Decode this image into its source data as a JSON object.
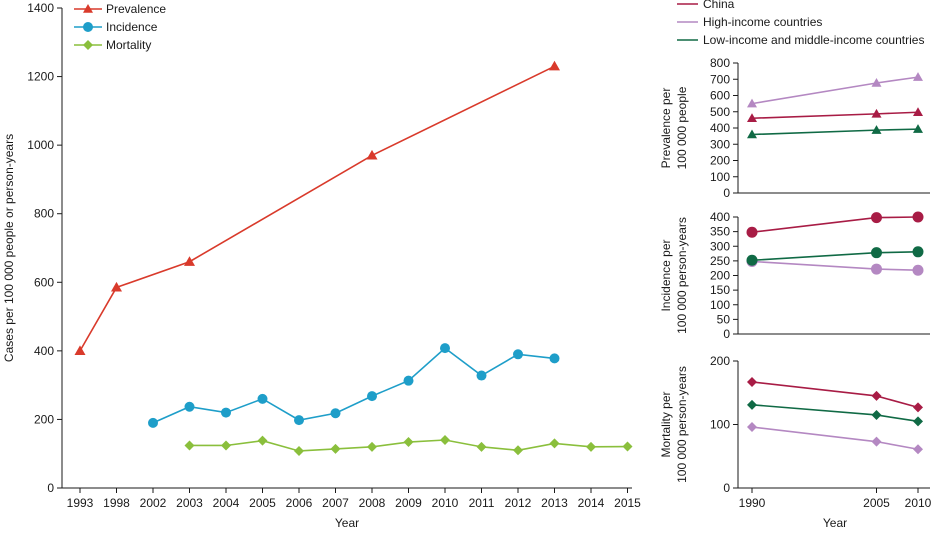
{
  "colors": {
    "prevalence": "#d93a2b",
    "incidence": "#1e9ec9",
    "mortality": "#8abf3c",
    "china": "#a81c45",
    "high_income": "#b488c2",
    "low_middle": "#106a45"
  },
  "chart_data": [
    {
      "type": "line",
      "x": [
        "1993",
        "1998",
        "2002",
        "2003",
        "2004",
        "2005",
        "2006",
        "2007",
        "2008",
        "2009",
        "2010",
        "2011",
        "2012",
        "2013",
        "2014",
        "2015"
      ],
      "xlabel": "Year",
      "ylabel": "Cases per 100 000 people or person-years",
      "ylim": [
        0,
        1400
      ],
      "yticks": [
        "0",
        "200",
        "400",
        "600",
        "800",
        "1000",
        "1200",
        "1400"
      ],
      "grid": false,
      "legend": "top-left",
      "series": [
        {
          "name": "Prevalence",
          "marker": "triangle",
          "color_key": "prevalence",
          "points": [
            [
              "1993",
              400
            ],
            [
              "1998",
              585
            ],
            [
              "2003",
              660
            ],
            [
              "2008",
              970
            ],
            [
              "2013",
              1230
            ]
          ]
        },
        {
          "name": "Incidence",
          "marker": "circle",
          "color_key": "incidence",
          "points": [
            [
              "2002",
              190
            ],
            [
              "2003",
              237
            ],
            [
              "2004",
              220
            ],
            [
              "2005",
              260
            ],
            [
              "2006",
              198
            ],
            [
              "2007",
              218
            ],
            [
              "2008",
              268
            ],
            [
              "2009",
              313
            ],
            [
              "2010",
              408
            ],
            [
              "2011",
              328
            ],
            [
              "2012",
              390
            ],
            [
              "2013",
              378
            ]
          ]
        },
        {
          "name": "Mortality",
          "marker": "diamond",
          "color_key": "mortality",
          "points": [
            [
              "2003",
              124
            ],
            [
              "2004",
              124
            ],
            [
              "2005",
              138
            ],
            [
              "2006",
              108
            ],
            [
              "2007",
              114
            ],
            [
              "2008",
              120
            ],
            [
              "2009",
              134
            ],
            [
              "2010",
              140
            ],
            [
              "2011",
              120
            ],
            [
              "2012",
              110
            ],
            [
              "2013",
              130
            ],
            [
              "2014",
              120
            ],
            [
              "2015",
              121
            ]
          ]
        }
      ]
    },
    {
      "type": "line",
      "x": [
        "1990",
        "2005",
        "2010"
      ],
      "xlabel": "Year",
      "legend": "top",
      "legend_entries": [
        {
          "name": "China",
          "color_key": "china"
        },
        {
          "name": "High-income countries",
          "color_key": "high_income"
        },
        {
          "name": "Low-income and middle-income countries",
          "color_key": "low_middle"
        }
      ],
      "panels": [
        {
          "ylabel_lines": [
            "Prevalence per",
            "100 000 people"
          ],
          "ylim": [
            0,
            800
          ],
          "yticks": [
            "0",
            "100",
            "200",
            "300",
            "400",
            "500",
            "600",
            "700",
            "800"
          ],
          "marker": "triangle",
          "series": [
            {
              "name": "China",
              "color_key": "china",
              "values": [
                460,
                487,
                497
              ]
            },
            {
              "name": "High-income countries",
              "color_key": "high_income",
              "values": [
                550,
                677,
                713
              ]
            },
            {
              "name": "Low-income and middle-income countries",
              "color_key": "low_middle",
              "values": [
                360,
                387,
                393
              ]
            }
          ]
        },
        {
          "ylabel_lines": [
            "Incidence per",
            "100 000 person-years"
          ],
          "ylim": [
            0,
            400
          ],
          "yticks": [
            "0",
            "50",
            "100",
            "150",
            "200",
            "250",
            "300",
            "350",
            "400"
          ],
          "marker": "circle",
          "series": [
            {
              "name": "China",
              "color_key": "china",
              "values": [
                348,
                398,
                400
              ]
            },
            {
              "name": "High-income countries",
              "color_key": "high_income",
              "values": [
                248,
                222,
                218
              ]
            },
            {
              "name": "Low-income and middle-income countries",
              "color_key": "low_middle",
              "values": [
                252,
                278,
                281
              ]
            }
          ]
        },
        {
          "ylabel_lines": [
            "Mortality per",
            "100 000 person-years"
          ],
          "ylim": [
            0,
            200
          ],
          "yticks": [
            "0",
            "100",
            "200"
          ],
          "marker": "diamond",
          "series": [
            {
              "name": "China",
              "color_key": "china",
              "values": [
                167,
                145,
                127
              ]
            },
            {
              "name": "High-income countries",
              "color_key": "high_income",
              "values": [
                96,
                73,
                61
              ]
            },
            {
              "name": "Low-income and middle-income countries",
              "color_key": "low_middle",
              "values": [
                131,
                115,
                105
              ]
            }
          ]
        }
      ]
    }
  ]
}
